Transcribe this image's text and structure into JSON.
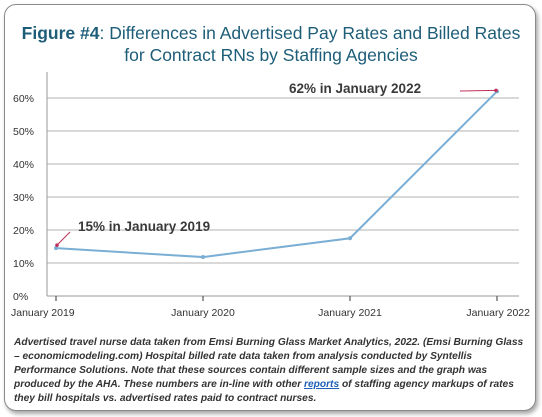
{
  "figure": {
    "label": "Figure #4",
    "title_rest": ": Differences in Advertised Pay Rates and Billed Rates for Contract RNs by Staffing Agencies"
  },
  "colors": {
    "title": "#1d5d78",
    "line": "#7aaed4",
    "marker": "#c0305a",
    "grid": "#9a9a9a",
    "link": "#1f5fb5"
  },
  "chart_data": {
    "type": "line",
    "x": [
      "January 2019",
      "January 2020",
      "January 2021",
      "January 2022"
    ],
    "series": [
      {
        "values": [
          14.5,
          11.8,
          17.5,
          62
        ]
      }
    ],
    "ylim": [
      0,
      60
    ],
    "yticks": [
      "0%",
      "10%",
      "20%",
      "30%",
      "40%",
      "50%",
      "60%"
    ],
    "grid": true,
    "annotations": [
      {
        "text": "15% in January 2019",
        "point_index": 0
      },
      {
        "text": "62% in January 2022",
        "point_index": 3
      }
    ]
  },
  "footnote": {
    "text_before": "Advertised travel nurse data taken from Emsi Burning Glass Market Analytics, 2022. (Emsi Burning Glass – economicmodeling.com)  Hospital billed rate data taken from analysis conducted by Syntellis Performance Solutions. Note that these sources contain different sample sizes and the graph was produced by the AHA. These numbers are in-line with other ",
    "link_text": "reports",
    "text_after": " of staffing agency markups of rates they bill hospitals vs. advertised rates paid to contract nurses."
  }
}
